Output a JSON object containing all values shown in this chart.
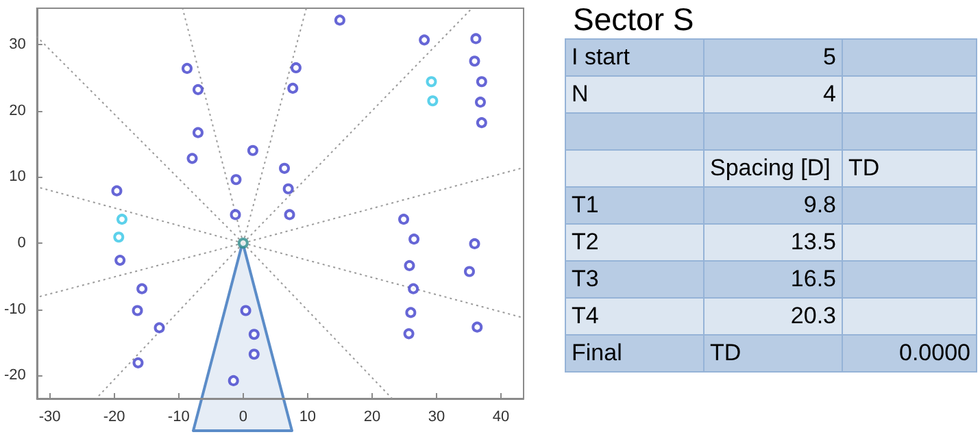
{
  "chart_data": [
    {
      "type": "scatter",
      "xlim": [
        -32,
        43.5
      ],
      "ylim": [
        -23.5,
        35.5
      ],
      "xticks": [
        -30,
        -20,
        -10,
        0,
        10,
        20,
        30,
        40
      ],
      "yticks": [
        -20,
        -10,
        0,
        10,
        20,
        30
      ],
      "grid": false,
      "marker": "circle",
      "series": [
        {
          "color": "#9a9a9a",
          "type": "line",
          "marker": "none",
          "line_style": "dotted",
          "x": [
            0,
            -9.4
          ],
          "values": [
            0,
            35.5
          ]
        },
        {
          "color": "#9a9a9a",
          "type": "line",
          "marker": "none",
          "line_style": "dotted",
          "x": [
            0,
            -32
          ],
          "values": [
            0,
            31.2
          ]
        },
        {
          "color": "#9a9a9a",
          "type": "line",
          "marker": "none",
          "line_style": "dotted",
          "x": [
            0,
            -32
          ],
          "values": [
            0,
            8.5
          ]
        },
        {
          "color": "#9a9a9a",
          "type": "line",
          "marker": "none",
          "line_style": "dotted",
          "x": [
            0,
            -32
          ],
          "values": [
            0,
            -8.2
          ]
        },
        {
          "color": "#9a9a9a",
          "type": "line",
          "marker": "none",
          "line_style": "dotted",
          "x": [
            0,
            -22.8
          ],
          "values": [
            0,
            -23.5
          ]
        },
        {
          "color": "#9a9a9a",
          "type": "line",
          "marker": "none",
          "line_style": "dotted",
          "x": [
            0,
            9.8
          ],
          "values": [
            0,
            35.5
          ]
        },
        {
          "color": "#9a9a9a",
          "type": "line",
          "marker": "none",
          "line_style": "dotted",
          "x": [
            0,
            35.5
          ],
          "values": [
            0,
            35.5
          ]
        },
        {
          "color": "#9a9a9a",
          "type": "line",
          "marker": "none",
          "line_style": "dotted",
          "x": [
            0,
            43.5
          ],
          "values": [
            0,
            11.4
          ]
        },
        {
          "color": "#9a9a9a",
          "type": "line",
          "marker": "none",
          "line_style": "dotted",
          "x": [
            0,
            43.5
          ],
          "values": [
            0,
            -11.3
          ]
        },
        {
          "color": "#9a9a9a",
          "type": "line",
          "marker": "none",
          "line_style": "dotted",
          "x": [
            0,
            23.1
          ],
          "values": [
            0,
            -23.5
          ]
        },
        {
          "color": "#4040cc",
          "x": [
            -8.7,
            -7.0,
            -7.0,
            -7.9,
            1.5,
            -1.1,
            -1.2,
            -19.6,
            15.0,
            8.2,
            7.7,
            6.4,
            7.0,
            7.2,
            28.1,
            36.1,
            35.9,
            37.0,
            36.8,
            37.0,
            24.9,
            26.5,
            35.9,
            -19.1,
            -15.7,
            -16.4,
            -13.0,
            -16.3,
            0.4,
            1.7,
            1.7,
            -1.5,
            25.8,
            35.1,
            26.4,
            26.0,
            36.3,
            25.7
          ],
          "values": [
            26.4,
            23.2,
            16.7,
            12.8,
            14.0,
            9.6,
            4.3,
            7.9,
            33.7,
            26.5,
            23.4,
            11.3,
            8.2,
            4.3,
            30.7,
            30.9,
            27.5,
            24.4,
            21.3,
            18.2,
            3.6,
            0.6,
            -0.1,
            -2.6,
            -6.9,
            -10.2,
            -12.8,
            -18.1,
            -10.2,
            -13.8,
            -16.8,
            -20.8,
            -3.4,
            -4.3,
            -6.9,
            -10.5,
            -12.7,
            -13.7
          ]
        },
        {
          "color": "#33c6e6",
          "x": [
            -18.8,
            -19.3,
            29.2,
            29.4
          ],
          "values": [
            3.6,
            0.9,
            24.4,
            21.5
          ]
        },
        {
          "color": "#2a8a8a",
          "x": [
            0
          ],
          "values": [
            0
          ]
        }
      ]
    },
    {
      "type": "other",
      "title": "Sector S",
      "categories": [
        "I start",
        "N",
        null,
        null,
        "T1",
        "T2",
        "T3",
        "T4",
        "Final"
      ],
      "series": [
        {
          "colors": [
            "#b8cce4",
            "#dce6f1",
            "#b8cce4",
            "#dce6f1",
            "#b8cce4",
            "#dce6f1",
            "#b8cce4",
            "#dce6f1",
            "#b8cce4"
          ],
          "values": [
            5,
            4,
            null,
            null,
            9.8,
            13.5,
            16.5,
            20.3,
            null
          ],
          "value_labels": [
            "5",
            "4",
            null,
            "Spacing [D]",
            "9.8",
            "13.5",
            "16.5",
            "20.3",
            "TD"
          ]
        },
        {
          "colors": [
            "#b8cce4",
            "#dce6f1",
            "#b8cce4",
            "#dce6f1",
            "#b8cce4",
            "#dce6f1",
            "#b8cce4",
            "#dce6f1",
            "#b8cce4"
          ],
          "values": [
            null,
            null,
            null,
            null,
            null,
            null,
            null,
            null,
            0
          ],
          "value_labels": [
            null,
            null,
            null,
            "TD",
            null,
            null,
            null,
            null,
            "0.0000"
          ]
        }
      ]
    }
  ]
}
